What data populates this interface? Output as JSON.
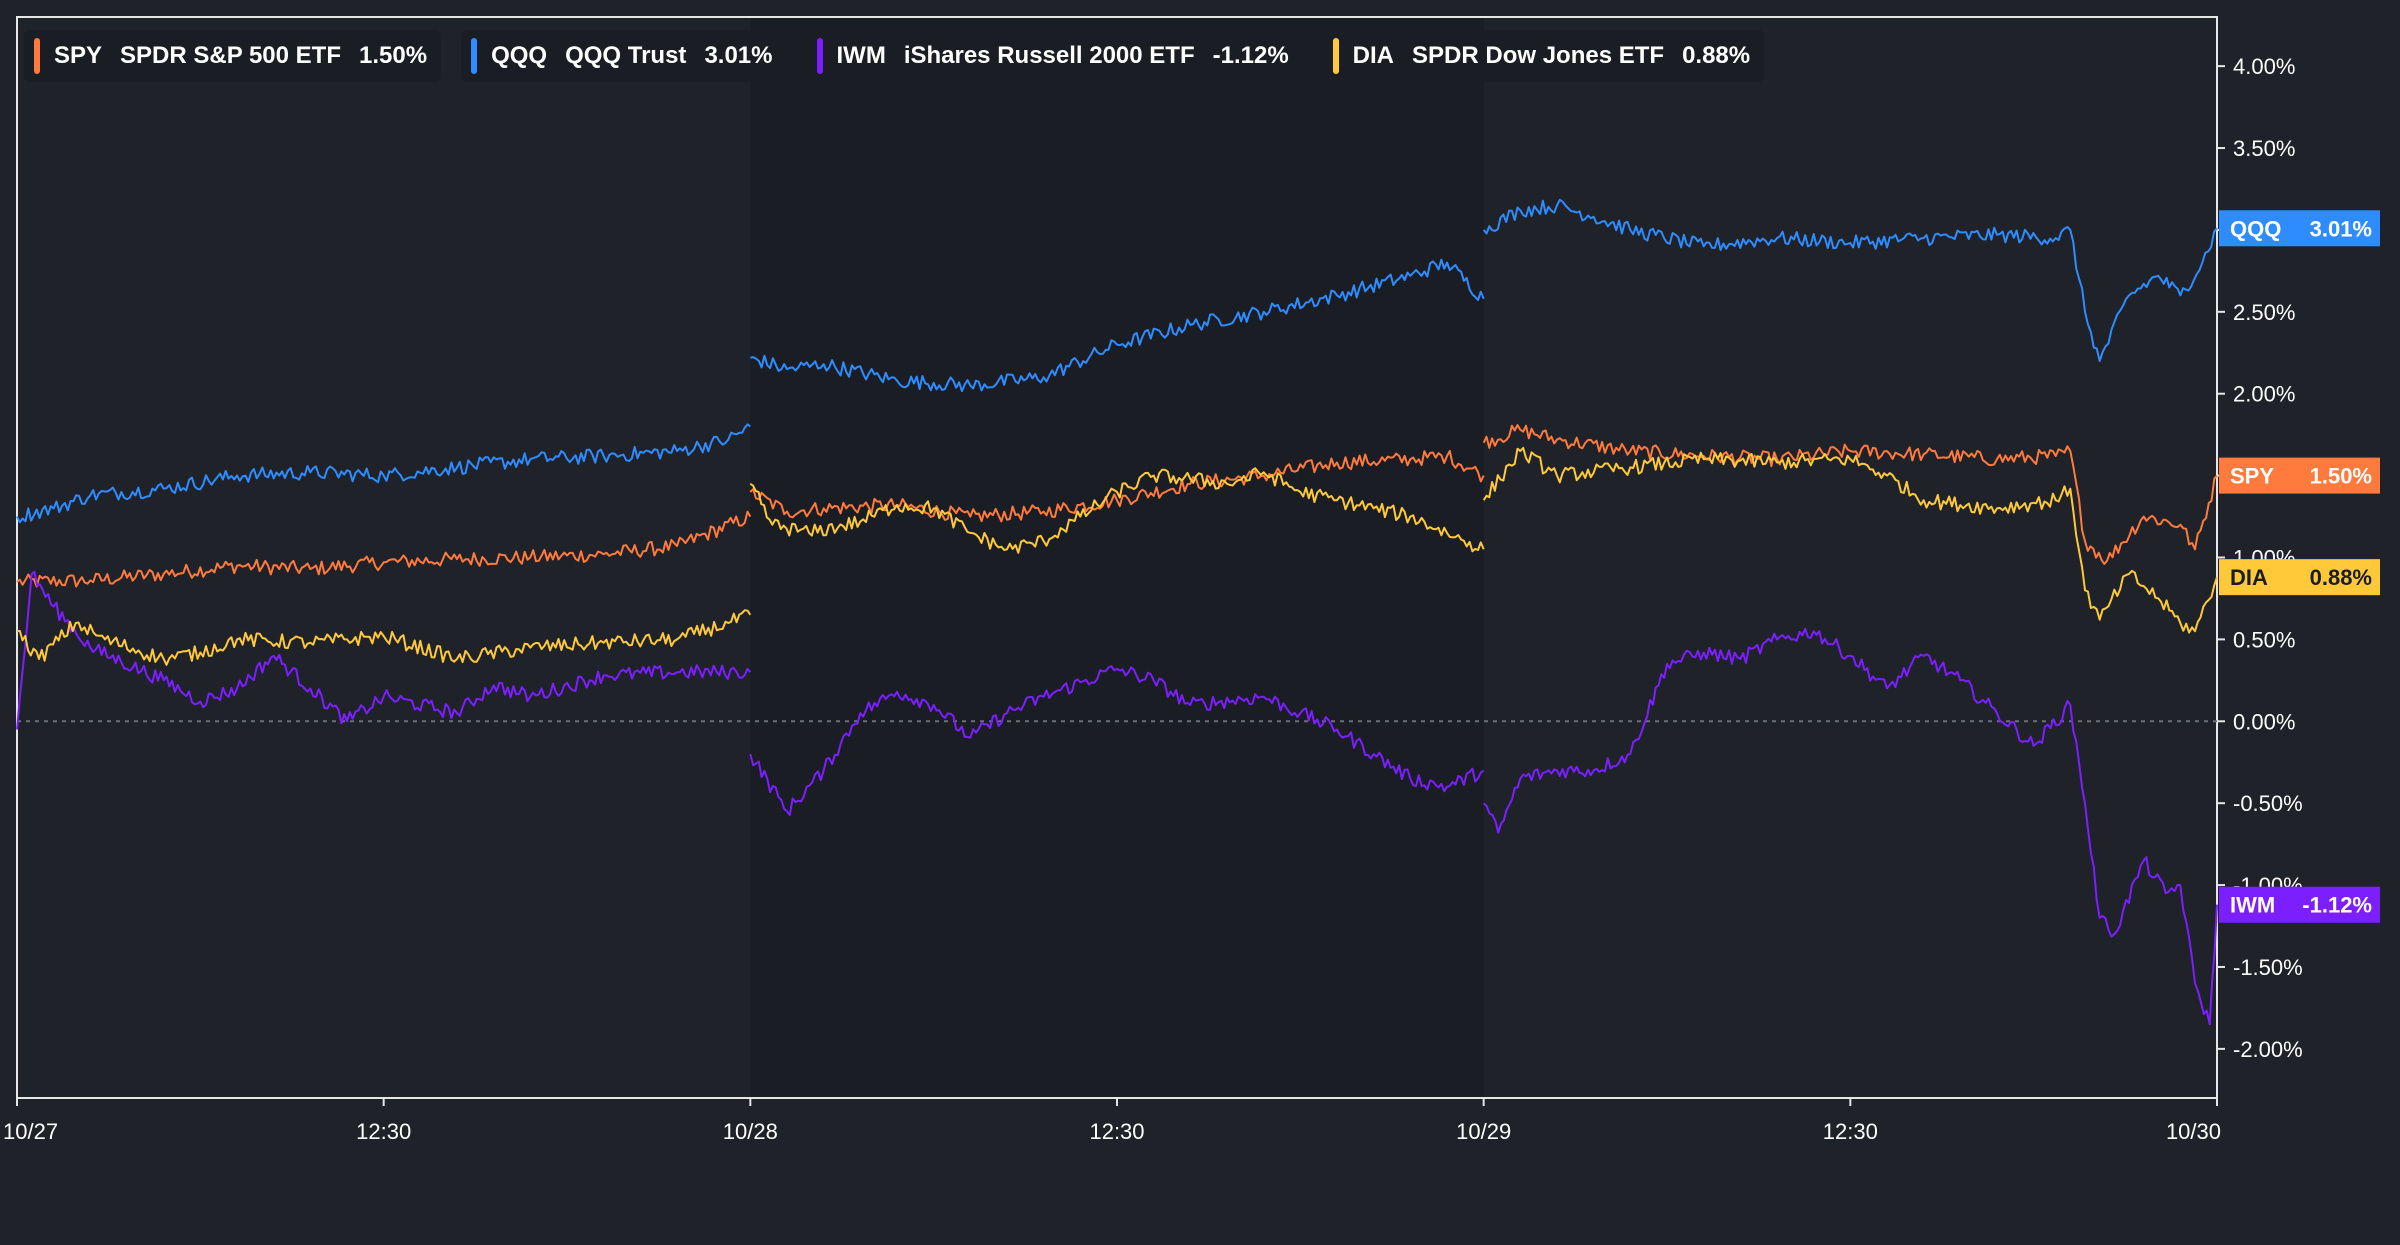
{
  "chart_data": {
    "type": "line",
    "title": "",
    "xlabel": "",
    "ylabel": "",
    "x_ticks": [
      "10/27",
      "12:30",
      "10/28",
      "12:30",
      "10/29",
      "12:30",
      "10/30"
    ],
    "y_ticks": [
      "4.00%",
      "3.50%",
      "3.00%",
      "2.50%",
      "2.00%",
      "1.50%",
      "1.00%",
      "0.50%",
      "0.00%",
      "-0.50%",
      "-1.00%",
      "-1.50%",
      "-2.00%"
    ],
    "y_tick_values": [
      4.0,
      3.5,
      3.0,
      2.5,
      2.0,
      1.5,
      1.0,
      0.5,
      0.0,
      -0.5,
      -1.0,
      -1.5,
      -2.0
    ],
    "ylim": [
      -2.3,
      4.3
    ],
    "xlim": [
      0,
      3
    ],
    "session_breaks": [
      1,
      2
    ],
    "y_axis_position": "right",
    "baseline": 0,
    "x_unit": "trading sessions from 10/27 open",
    "series": [
      {
        "symbol": "SPY",
        "name": "SPDR S&P 500 ETF",
        "change": "1.50%",
        "last": 1.5,
        "color": "#ff7a3d",
        "points": [
          [
            0,
            0.85
          ],
          [
            0.1,
            0.86
          ],
          [
            0.2,
            0.9
          ],
          [
            0.3,
            0.95
          ],
          [
            0.4,
            0.93
          ],
          [
            0.5,
            0.97
          ],
          [
            0.6,
            0.99
          ],
          [
            0.7,
            1.0
          ],
          [
            0.8,
            1.02
          ],
          [
            0.9,
            1.07
          ],
          [
            1.0,
            1.25
          ],
          [
            1.0,
            1.4
          ],
          [
            1.05,
            1.28
          ],
          [
            1.1,
            1.3
          ],
          [
            1.2,
            1.32
          ],
          [
            1.3,
            1.25
          ],
          [
            1.4,
            1.28
          ],
          [
            1.5,
            1.35
          ],
          [
            1.6,
            1.45
          ],
          [
            1.7,
            1.5
          ],
          [
            1.8,
            1.58
          ],
          [
            1.9,
            1.6
          ],
          [
            1.95,
            1.62
          ],
          [
            2.0,
            1.5
          ],
          [
            2.0,
            1.7
          ],
          [
            2.05,
            1.78
          ],
          [
            2.1,
            1.72
          ],
          [
            2.2,
            1.65
          ],
          [
            2.3,
            1.62
          ],
          [
            2.4,
            1.6
          ],
          [
            2.5,
            1.65
          ],
          [
            2.6,
            1.63
          ],
          [
            2.7,
            1.6
          ],
          [
            2.78,
            1.62
          ],
          [
            2.8,
            1.65
          ],
          [
            2.82,
            1.1
          ],
          [
            2.85,
            0.98
          ],
          [
            2.9,
            1.25
          ],
          [
            2.95,
            1.2
          ],
          [
            2.97,
            1.05
          ],
          [
            3.0,
            1.5
          ]
        ]
      },
      {
        "symbol": "QQQ",
        "name": "QQQ Trust",
        "change": "3.01%",
        "last": 3.01,
        "color": "#2f8cff",
        "points": [
          [
            0,
            1.25
          ],
          [
            0.05,
            1.3
          ],
          [
            0.1,
            1.38
          ],
          [
            0.2,
            1.42
          ],
          [
            0.3,
            1.5
          ],
          [
            0.4,
            1.52
          ],
          [
            0.5,
            1.5
          ],
          [
            0.6,
            1.55
          ],
          [
            0.7,
            1.6
          ],
          [
            0.8,
            1.62
          ],
          [
            0.9,
            1.65
          ],
          [
            0.97,
            1.72
          ],
          [
            1.0,
            1.8
          ],
          [
            1.0,
            2.22
          ],
          [
            1.05,
            2.15
          ],
          [
            1.1,
            2.18
          ],
          [
            1.2,
            2.08
          ],
          [
            1.3,
            2.05
          ],
          [
            1.4,
            2.1
          ],
          [
            1.5,
            2.3
          ],
          [
            1.6,
            2.42
          ],
          [
            1.7,
            2.5
          ],
          [
            1.8,
            2.6
          ],
          [
            1.9,
            2.72
          ],
          [
            1.95,
            2.8
          ],
          [
            2.0,
            2.58
          ],
          [
            2.0,
            3.0
          ],
          [
            2.05,
            3.12
          ],
          [
            2.1,
            3.15
          ],
          [
            2.15,
            3.08
          ],
          [
            2.2,
            3.0
          ],
          [
            2.3,
            2.9
          ],
          [
            2.4,
            2.95
          ],
          [
            2.5,
            2.92
          ],
          [
            2.6,
            2.95
          ],
          [
            2.7,
            2.97
          ],
          [
            2.78,
            2.95
          ],
          [
            2.8,
            3.0
          ],
          [
            2.82,
            2.5
          ],
          [
            2.84,
            2.2
          ],
          [
            2.88,
            2.6
          ],
          [
            2.92,
            2.72
          ],
          [
            2.95,
            2.6
          ],
          [
            2.98,
            2.8
          ],
          [
            3.0,
            3.01
          ]
        ]
      },
      {
        "symbol": "IWM",
        "name": "iShares Russell 2000 ETF",
        "change": "-1.12%",
        "last": -1.12,
        "color": "#7b1fff",
        "points": [
          [
            0,
            -0.05
          ],
          [
            0.02,
            0.9
          ],
          [
            0.05,
            0.7
          ],
          [
            0.1,
            0.45
          ],
          [
            0.2,
            0.25
          ],
          [
            0.25,
            0.12
          ],
          [
            0.3,
            0.2
          ],
          [
            0.35,
            0.4
          ],
          [
            0.4,
            0.2
          ],
          [
            0.45,
            0.0
          ],
          [
            0.5,
            0.15
          ],
          [
            0.6,
            0.05
          ],
          [
            0.65,
            0.22
          ],
          [
            0.7,
            0.15
          ],
          [
            0.8,
            0.28
          ],
          [
            0.9,
            0.3
          ],
          [
            1.0,
            0.3
          ],
          [
            1.0,
            -0.2
          ],
          [
            1.05,
            -0.55
          ],
          [
            1.1,
            -0.3
          ],
          [
            1.15,
            0.05
          ],
          [
            1.2,
            0.18
          ],
          [
            1.25,
            0.1
          ],
          [
            1.3,
            -0.1
          ],
          [
            1.35,
            0.05
          ],
          [
            1.4,
            0.15
          ],
          [
            1.5,
            0.32
          ],
          [
            1.55,
            0.25
          ],
          [
            1.6,
            0.1
          ],
          [
            1.7,
            0.15
          ],
          [
            1.75,
            0.05
          ],
          [
            1.8,
            -0.05
          ],
          [
            1.85,
            -0.2
          ],
          [
            1.9,
            -0.35
          ],
          [
            1.95,
            -0.4
          ],
          [
            2.0,
            -0.3
          ],
          [
            2.0,
            -0.5
          ],
          [
            2.02,
            -0.68
          ],
          [
            2.05,
            -0.35
          ],
          [
            2.1,
            -0.3
          ],
          [
            2.15,
            -0.3
          ],
          [
            2.2,
            -0.2
          ],
          [
            2.25,
            0.35
          ],
          [
            2.3,
            0.42
          ],
          [
            2.35,
            0.38
          ],
          [
            2.4,
            0.5
          ],
          [
            2.45,
            0.55
          ],
          [
            2.5,
            0.4
          ],
          [
            2.55,
            0.2
          ],
          [
            2.6,
            0.4
          ],
          [
            2.65,
            0.25
          ],
          [
            2.7,
            0.05
          ],
          [
            2.75,
            -0.15
          ],
          [
            2.8,
            0.1
          ],
          [
            2.82,
            -0.5
          ],
          [
            2.84,
            -1.2
          ],
          [
            2.86,
            -1.3
          ],
          [
            2.9,
            -0.85
          ],
          [
            2.93,
            -1.05
          ],
          [
            2.95,
            -1.0
          ],
          [
            2.97,
            -1.6
          ],
          [
            2.99,
            -1.85
          ],
          [
            3.0,
            -1.12
          ]
        ]
      },
      {
        "symbol": "DIA",
        "name": "SPDR Dow Jones ETF",
        "change": "0.88%",
        "last": 0.88,
        "color": "#ffc93a",
        "points": [
          [
            0,
            0.55
          ],
          [
            0.03,
            0.38
          ],
          [
            0.08,
            0.6
          ],
          [
            0.12,
            0.5
          ],
          [
            0.2,
            0.38
          ],
          [
            0.25,
            0.42
          ],
          [
            0.3,
            0.5
          ],
          [
            0.4,
            0.48
          ],
          [
            0.5,
            0.52
          ],
          [
            0.6,
            0.38
          ],
          [
            0.7,
            0.45
          ],
          [
            0.8,
            0.48
          ],
          [
            0.9,
            0.5
          ],
          [
            0.97,
            0.6
          ],
          [
            1.0,
            0.65
          ],
          [
            1.0,
            1.45
          ],
          [
            1.03,
            1.2
          ],
          [
            1.08,
            1.15
          ],
          [
            1.15,
            1.22
          ],
          [
            1.2,
            1.32
          ],
          [
            1.25,
            1.3
          ],
          [
            1.3,
            1.15
          ],
          [
            1.35,
            1.05
          ],
          [
            1.4,
            1.1
          ],
          [
            1.45,
            1.25
          ],
          [
            1.5,
            1.4
          ],
          [
            1.55,
            1.5
          ],
          [
            1.6,
            1.48
          ],
          [
            1.65,
            1.45
          ],
          [
            1.7,
            1.52
          ],
          [
            1.75,
            1.4
          ],
          [
            1.8,
            1.35
          ],
          [
            1.85,
            1.3
          ],
          [
            1.9,
            1.25
          ],
          [
            1.95,
            1.15
          ],
          [
            2.0,
            1.05
          ],
          [
            2.0,
            1.35
          ],
          [
            2.05,
            1.65
          ],
          [
            2.1,
            1.5
          ],
          [
            2.2,
            1.55
          ],
          [
            2.3,
            1.6
          ],
          [
            2.4,
            1.58
          ],
          [
            2.5,
            1.6
          ],
          [
            2.55,
            1.5
          ],
          [
            2.6,
            1.35
          ],
          [
            2.7,
            1.3
          ],
          [
            2.78,
            1.35
          ],
          [
            2.8,
            1.42
          ],
          [
            2.82,
            0.8
          ],
          [
            2.84,
            0.62
          ],
          [
            2.88,
            0.9
          ],
          [
            2.92,
            0.75
          ],
          [
            2.95,
            0.6
          ],
          [
            2.97,
            0.55
          ],
          [
            3.0,
            0.88
          ]
        ]
      }
    ]
  }
}
